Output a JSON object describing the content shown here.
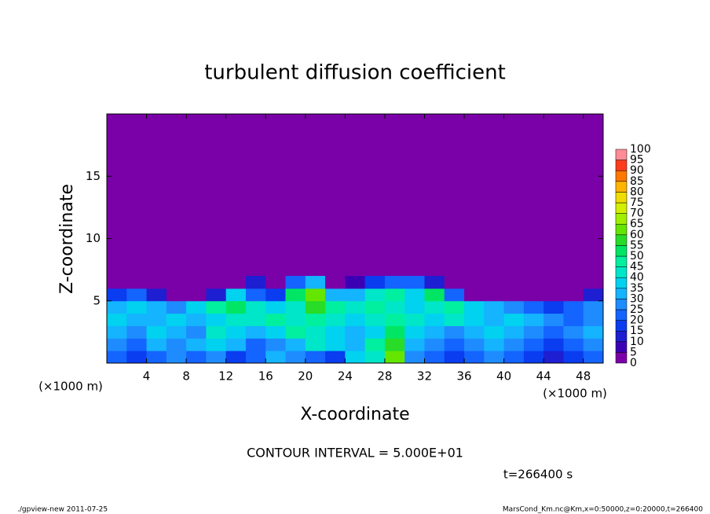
{
  "chart_data": {
    "type": "heatmap",
    "title": "turbulent diffusion coefficient",
    "x_label": "X-coordinate",
    "y_label": "Z-coordinate",
    "x_unit": "(×1000 m)",
    "y_unit": "(×1000 m)",
    "xlim": [
      0,
      50
    ],
    "ylim": [
      0,
      20
    ],
    "xticks": [
      4,
      8,
      12,
      16,
      20,
      24,
      28,
      32,
      36,
      40,
      44,
      48
    ],
    "yticks": [
      5,
      10,
      15
    ],
    "x_edges": [
      0,
      2,
      4,
      6,
      8,
      10,
      12,
      14,
      16,
      18,
      20,
      22,
      24,
      26,
      28,
      30,
      32,
      34,
      36,
      38,
      40,
      42,
      44,
      46,
      48,
      50
    ],
    "y_edges": [
      0,
      1,
      2,
      3,
      4,
      5,
      6,
      7
    ],
    "values": [
      [
        20,
        15,
        20,
        25,
        20,
        25,
        15,
        20,
        30,
        25,
        20,
        15,
        35,
        40,
        60,
        25,
        20,
        15,
        20,
        25,
        20,
        15,
        10,
        15,
        20
      ],
      [
        25,
        20,
        30,
        25,
        30,
        35,
        30,
        20,
        25,
        30,
        40,
        35,
        30,
        45,
        55,
        30,
        25,
        20,
        25,
        30,
        25,
        20,
        15,
        20,
        25
      ],
      [
        30,
        25,
        35,
        30,
        25,
        40,
        35,
        30,
        35,
        45,
        40,
        35,
        30,
        35,
        50,
        35,
        30,
        25,
        30,
        35,
        30,
        25,
        20,
        25,
        30
      ],
      [
        35,
        30,
        30,
        35,
        30,
        35,
        40,
        40,
        45,
        40,
        45,
        40,
        35,
        40,
        45,
        40,
        35,
        40,
        35,
        30,
        35,
        30,
        25,
        20,
        25
      ],
      [
        30,
        35,
        30,
        25,
        35,
        45,
        50,
        40,
        35,
        40,
        55,
        45,
        40,
        45,
        40,
        35,
        40,
        45,
        35,
        30,
        25,
        20,
        15,
        20,
        25
      ],
      [
        15,
        20,
        10,
        0,
        0,
        10,
        35,
        20,
        15,
        50,
        60,
        30,
        30,
        40,
        45,
        35,
        50,
        20,
        0,
        0,
        0,
        0,
        0,
        0,
        10
      ],
      [
        0,
        0,
        0,
        0,
        0,
        0,
        0,
        10,
        0,
        20,
        30,
        0,
        5,
        15,
        20,
        20,
        10,
        0,
        0,
        0,
        0,
        0,
        0,
        0,
        0
      ]
    ],
    "background_value": 0,
    "colorbar_ticks": [
      0,
      5,
      10,
      15,
      20,
      25,
      30,
      35,
      40,
      45,
      50,
      55,
      60,
      65,
      70,
      75,
      80,
      85,
      90,
      95,
      100
    ],
    "colors": [
      "#7a00a8",
      "#3c00b4",
      "#1e1ed2",
      "#0a3cf0",
      "#1464ff",
      "#1e8cff",
      "#14b4ff",
      "#00d2f0",
      "#00e6c8",
      "#00f0a0",
      "#00e664",
      "#28dc28",
      "#64e600",
      "#a0f000",
      "#d2f000",
      "#f0dc00",
      "#ffb400",
      "#ff7800",
      "#ff3c1e",
      "#ff8c96"
    ],
    "annotations": [
      "CONTOUR INTERVAL = 5.000E+01",
      "t=266400 s"
    ],
    "footer_left": "./gpview-new  2011-07-25",
    "footer_right": "MarsCond_Km.nc@Km,x=0:50000,z=0:20000,t=266400"
  }
}
